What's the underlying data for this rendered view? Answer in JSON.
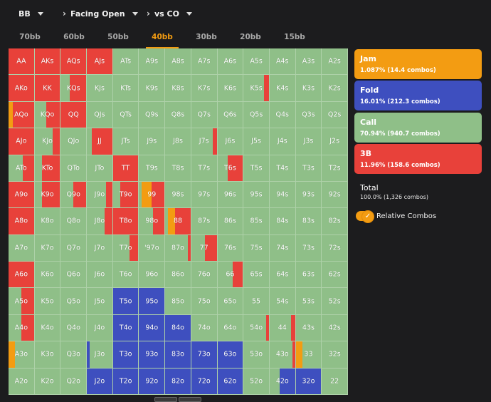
{
  "topbar": {
    "position": "BB",
    "situation": "Facing Open",
    "opponent": "vs CO"
  },
  "tabs": [
    {
      "label": "70bb",
      "active": false
    },
    {
      "label": "60bb",
      "active": false
    },
    {
      "label": "50bb",
      "active": false
    },
    {
      "label": "40bb",
      "active": true
    },
    {
      "label": "30bb",
      "active": false
    },
    {
      "label": "20bb",
      "active": false
    },
    {
      "label": "15bb",
      "active": false
    }
  ],
  "colors": {
    "jam": "#f39c12",
    "fold": "#3e4fbf",
    "call": "#8fbf88",
    "threebet": "#e8413a"
  },
  "actions": [
    {
      "key": "jam",
      "label": "Jam",
      "stats": "1.087% (14.4 combos)"
    },
    {
      "key": "fold",
      "label": "Fold",
      "stats": "16.01% (212.3 combos)"
    },
    {
      "key": "call",
      "label": "Call",
      "stats": "70.94% (940.7 combos)"
    },
    {
      "key": "threebet",
      "label": "3B",
      "stats": "11.96% (158.6 combos)"
    }
  ],
  "total": {
    "label": "Total",
    "stats": "100.0% (1,326 combos)"
  },
  "relative_combos": {
    "label": "Relative Combos",
    "on": true
  },
  "grid": [
    [
      "AA",
      "AKs",
      "AQs",
      "AJs",
      "ATs",
      "A9s",
      "A8s",
      "A7s",
      "A6s",
      "A5s",
      "A4s",
      "A3s",
      "A2s"
    ],
    [
      "AKo",
      "KK",
      "KQs",
      "KJs",
      "KTs",
      "K9s",
      "K8s",
      "K7s",
      "K6s",
      "K5s",
      "K4s",
      "K3s",
      "K2s"
    ],
    [
      "AQo",
      "KQo",
      "QQ",
      "QJs",
      "QTs",
      "Q9s",
      "Q8s",
      "Q7s",
      "Q6s",
      "Q5s",
      "Q4s",
      "Q3s",
      "Q2s"
    ],
    [
      "AJo",
      "KJo",
      "QJo",
      "JJ",
      "JTs",
      "J9s",
      "J8s",
      "J7s",
      "J6s",
      "J5s",
      "J4s",
      "J3s",
      "J2s"
    ],
    [
      "ATo",
      "KTo",
      "QTo",
      "JTo",
      "TT",
      "T9s",
      "T8s",
      "T7s",
      "T6s",
      "T5s",
      "T4s",
      "T3s",
      "T2s"
    ],
    [
      "A9o",
      "K9o",
      "Q9o",
      "J9o",
      "T9o",
      "99",
      "98s",
      "97s",
      "96s",
      "95s",
      "94s",
      "93s",
      "92s"
    ],
    [
      "A8o",
      "K8o",
      "Q8o",
      "J8o",
      "T8o",
      "98o",
      "88",
      "87s",
      "86s",
      "85s",
      "84s",
      "83s",
      "82s"
    ],
    [
      "A7o",
      "K7o",
      "Q7o",
      "J7o",
      "T7o",
      "'97o",
      "87o",
      "77",
      "76s",
      "75s",
      "74s",
      "73s",
      "72s"
    ],
    [
      "A6o",
      "K6o",
      "Q6o",
      "J6o",
      "T6o",
      "96o",
      "86o",
      "76o",
      "66",
      "65s",
      "64s",
      "63s",
      "62s"
    ],
    [
      "A5o",
      "K5o",
      "Q5o",
      "J5o",
      "T5o",
      "95o",
      "85o",
      "75o",
      "65o",
      "55",
      "54s",
      "53s",
      "52s"
    ],
    [
      "A4o",
      "K4o",
      "Q4o",
      "J4o",
      "T4o",
      "94o",
      "84o",
      "74o",
      "64o",
      "54o",
      "44",
      "43s",
      "42s"
    ],
    [
      "A3o",
      "K3o",
      "Q3o",
      "J3o",
      "T3o",
      "93o",
      "83o",
      "73o",
      "63o",
      "53o",
      "43o",
      "33",
      "32s"
    ],
    [
      "A2o",
      "K2o",
      "Q2o",
      "J2o",
      "T2o",
      "92o",
      "82o",
      "72o",
      "62o",
      "52o",
      "42o",
      "32o",
      "22"
    ]
  ],
  "strategy": {
    "AA": [
      [
        "threebet",
        1
      ]
    ],
    "AKs": [
      [
        "threebet",
        1
      ]
    ],
    "AQs": [
      [
        "threebet",
        1
      ]
    ],
    "AJs": [
      [
        "threebet",
        1
      ]
    ],
    "AKo": [
      [
        "threebet",
        1
      ]
    ],
    "KK": [
      [
        "threebet",
        1
      ]
    ],
    "KQs": [
      [
        "call",
        0.35
      ],
      [
        "threebet",
        0.65
      ]
    ],
    "K5s": [
      [
        "call",
        0.8
      ],
      [
        "threebet",
        0.2
      ]
    ],
    "AQo": [
      [
        "jam",
        0.18
      ],
      [
        "threebet",
        0.82
      ]
    ],
    "KQo": [
      [
        "call",
        0.45
      ],
      [
        "threebet",
        0.55
      ]
    ],
    "QQ": [
      [
        "threebet",
        1
      ]
    ],
    "AJo": [
      [
        "threebet",
        1
      ]
    ],
    "KJo": [
      [
        "call",
        0.7
      ],
      [
        "threebet",
        0.3
      ]
    ],
    "JJ": [
      [
        "call",
        0.2
      ],
      [
        "threebet",
        0.8
      ]
    ],
    "J7s": [
      [
        "call",
        0.85
      ],
      [
        "threebet",
        0.15
      ]
    ],
    "ATo": [
      [
        "call",
        0.55
      ],
      [
        "threebet",
        0.45
      ]
    ],
    "KTo": [
      [
        "call",
        0.3
      ],
      [
        "threebet",
        0.7
      ]
    ],
    "TT": [
      [
        "threebet",
        1
      ]
    ],
    "T6s": [
      [
        "call",
        0.4
      ],
      [
        "threebet",
        0.6
      ]
    ],
    "A9o": [
      [
        "threebet",
        1
      ]
    ],
    "K9o": [
      [
        "call",
        0.3
      ],
      [
        "threebet",
        0.7
      ]
    ],
    "Q9o": [
      [
        "call",
        0.5
      ],
      [
        "threebet",
        0.5
      ]
    ],
    "J9o": [
      [
        "call",
        0.75
      ],
      [
        "threebet",
        0.25
      ]
    ],
    "T9o": [
      [
        "call",
        0.3
      ],
      [
        "threebet",
        0.7
      ]
    ],
    "99": [
      [
        "call",
        0.1
      ],
      [
        "jam",
        0.4
      ],
      [
        "threebet",
        0.5
      ]
    ],
    "A8o": [
      [
        "threebet",
        1
      ]
    ],
    "J8o": [
      [
        "call",
        0.7
      ],
      [
        "threebet",
        0.3
      ]
    ],
    "T8o": [
      [
        "threebet",
        1
      ]
    ],
    "98o": [
      [
        "call",
        0.55
      ],
      [
        "threebet",
        0.45
      ]
    ],
    "88": [
      [
        "call",
        0.1
      ],
      [
        "jam",
        0.3
      ],
      [
        "threebet",
        0.6
      ]
    ],
    "T7o": [
      [
        "call",
        0.65
      ],
      [
        "threebet",
        0.35
      ]
    ],
    "87o": [
      [
        "call",
        0.88
      ],
      [
        "threebet",
        0.12
      ]
    ],
    "77": [
      [
        "call",
        0.55
      ],
      [
        "threebet",
        0.45
      ]
    ],
    "A6o": [
      [
        "threebet",
        1
      ]
    ],
    "66": [
      [
        "call",
        0.6
      ],
      [
        "threebet",
        0.4
      ]
    ],
    "A5o": [
      [
        "call",
        0.5
      ],
      [
        "threebet",
        0.5
      ]
    ],
    "T5o": [
      [
        "fold",
        1
      ]
    ],
    "95o": [
      [
        "fold",
        1
      ]
    ],
    "A4o": [
      [
        "call",
        0.5
      ],
      [
        "threebet",
        0.5
      ]
    ],
    "T4o": [
      [
        "fold",
        1
      ]
    ],
    "94o": [
      [
        "fold",
        1
      ]
    ],
    "84o": [
      [
        "fold",
        1
      ]
    ],
    "54o": [
      [
        "call",
        0.9
      ],
      [
        "threebet",
        0.1
      ]
    ],
    "44": [
      [
        "call",
        0.85
      ],
      [
        "threebet",
        0.15
      ]
    ],
    "A3o": [
      [
        "jam",
        0.25
      ],
      [
        "call",
        0.75
      ]
    ],
    "J3o": [
      [
        "fold",
        0.1
      ],
      [
        "call",
        0.9
      ]
    ],
    "T3o": [
      [
        "fold",
        1
      ]
    ],
    "93o": [
      [
        "fold",
        1
      ]
    ],
    "83o": [
      [
        "fold",
        1
      ]
    ],
    "73o": [
      [
        "fold",
        1
      ]
    ],
    "63o": [
      [
        "fold",
        1
      ]
    ],
    "43o": [
      [
        "call",
        0.9
      ],
      [
        "threebet",
        0.1
      ]
    ],
    "33": [
      [
        "jam",
        0.25
      ],
      [
        "call",
        0.75
      ]
    ],
    "J2o": [
      [
        "fold",
        1
      ]
    ],
    "T2o": [
      [
        "fold",
        1
      ]
    ],
    "92o": [
      [
        "fold",
        1
      ]
    ],
    "82o": [
      [
        "fold",
        1
      ]
    ],
    "72o": [
      [
        "fold",
        1
      ]
    ],
    "62o": [
      [
        "fold",
        1
      ]
    ],
    "42o": [
      [
        "call",
        0.4
      ],
      [
        "fold",
        0.6
      ]
    ],
    "32o": [
      [
        "fold",
        1
      ]
    ]
  }
}
